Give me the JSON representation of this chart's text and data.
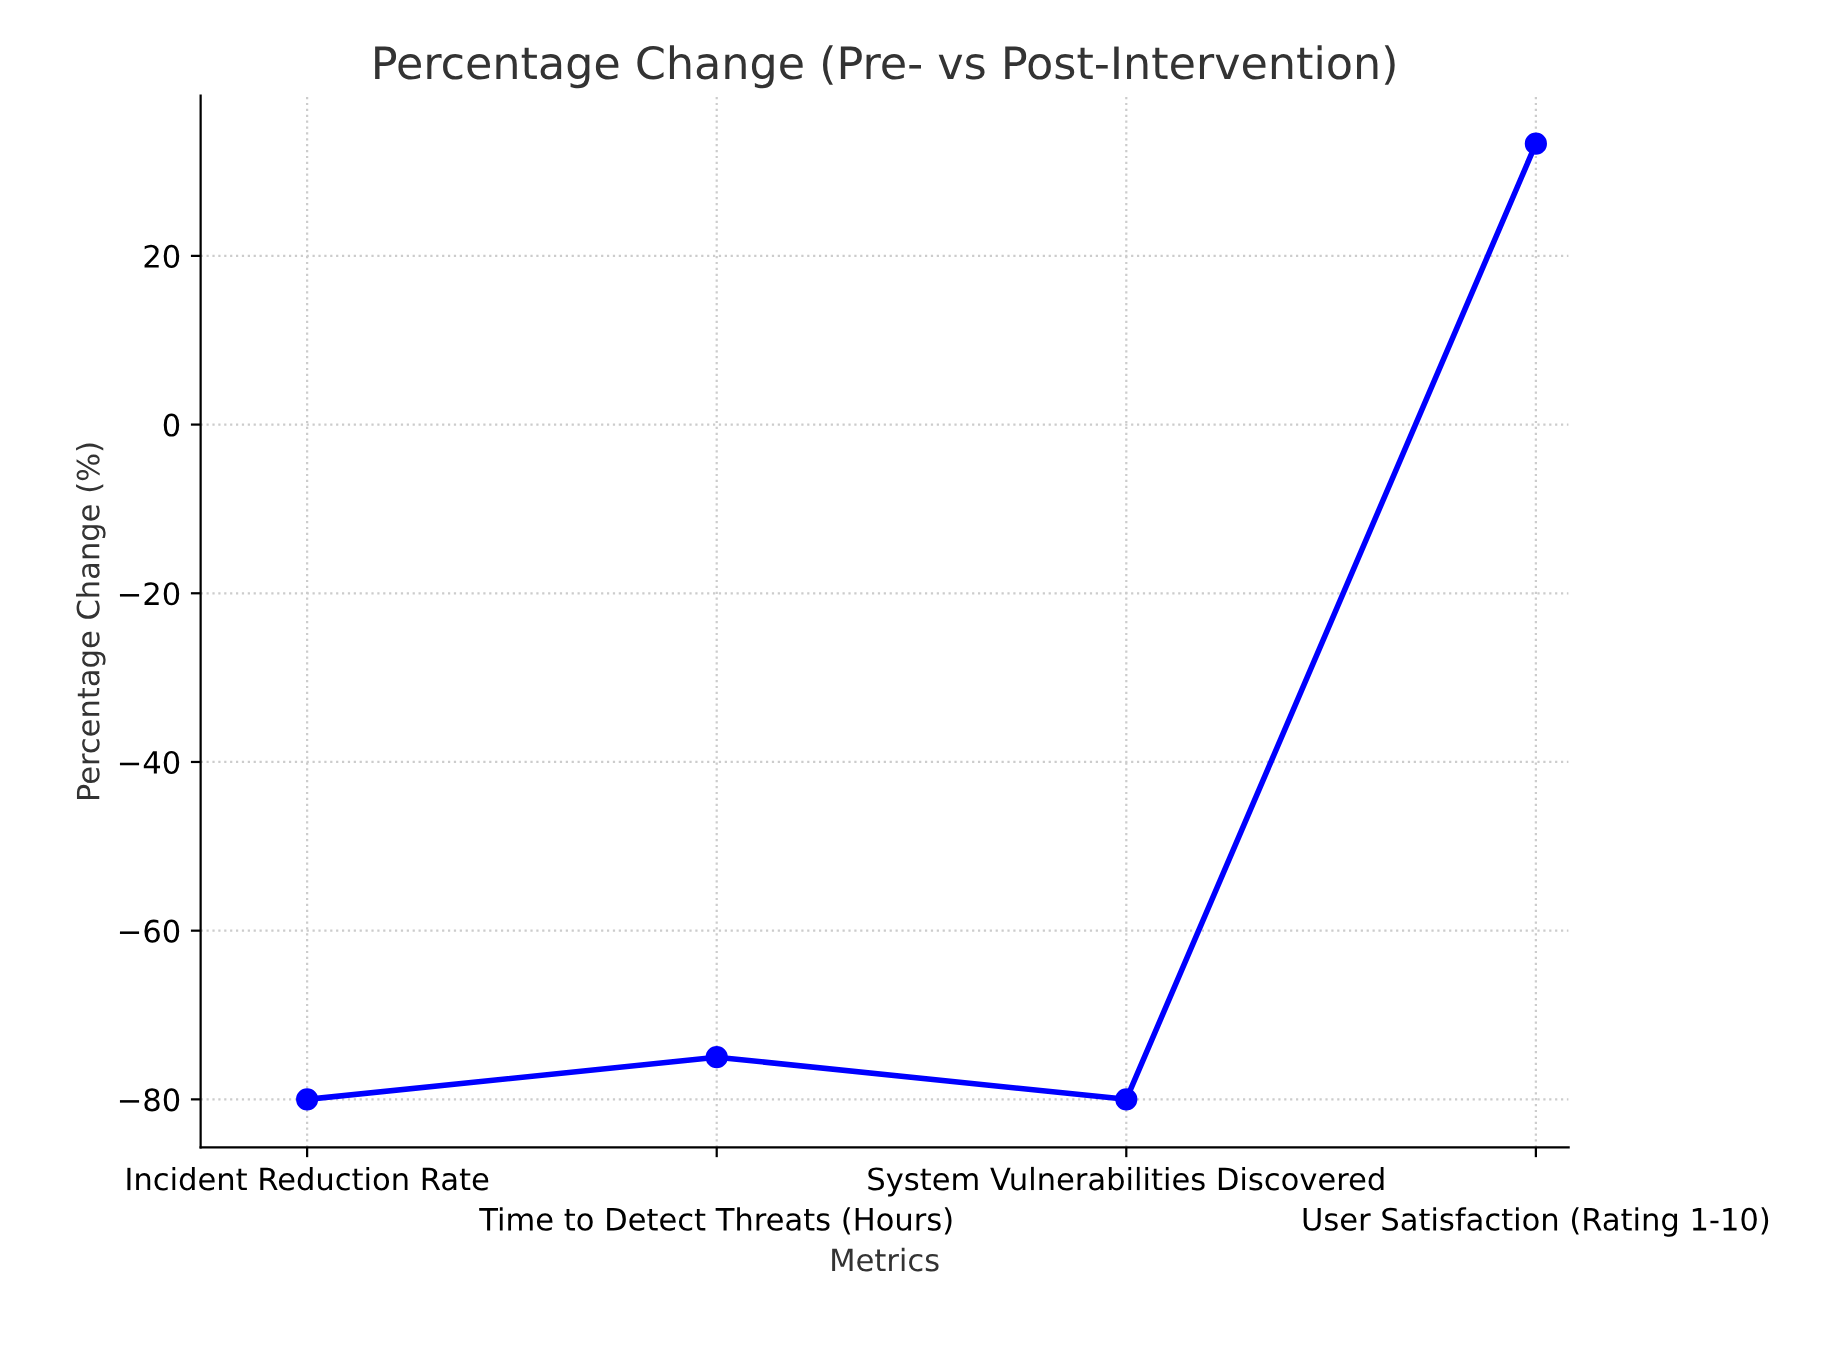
{
  "chart_data": {
    "type": "line",
    "title": "Percentage Change (Pre- vs Post-Intervention)",
    "xlabel": "Metrics",
    "ylabel": "Percentage Change (%)",
    "categories": [
      "Incident Reduction Rate",
      "Time to Detect Threats (Hours)",
      "System Vulnerabilities Discovered",
      "User Satisfaction (Rating 1-10)"
    ],
    "series": [
      {
        "color": "#0000ff",
        "values": [
          -80,
          -75,
          -80,
          33.3
        ]
      }
    ],
    "ylim": [
      -85.7,
      39
    ],
    "yticks": [
      -80,
      -60,
      -40,
      -20,
      0,
      20
    ],
    "grid": true,
    "marker": "circle",
    "line_style": "solid"
  }
}
